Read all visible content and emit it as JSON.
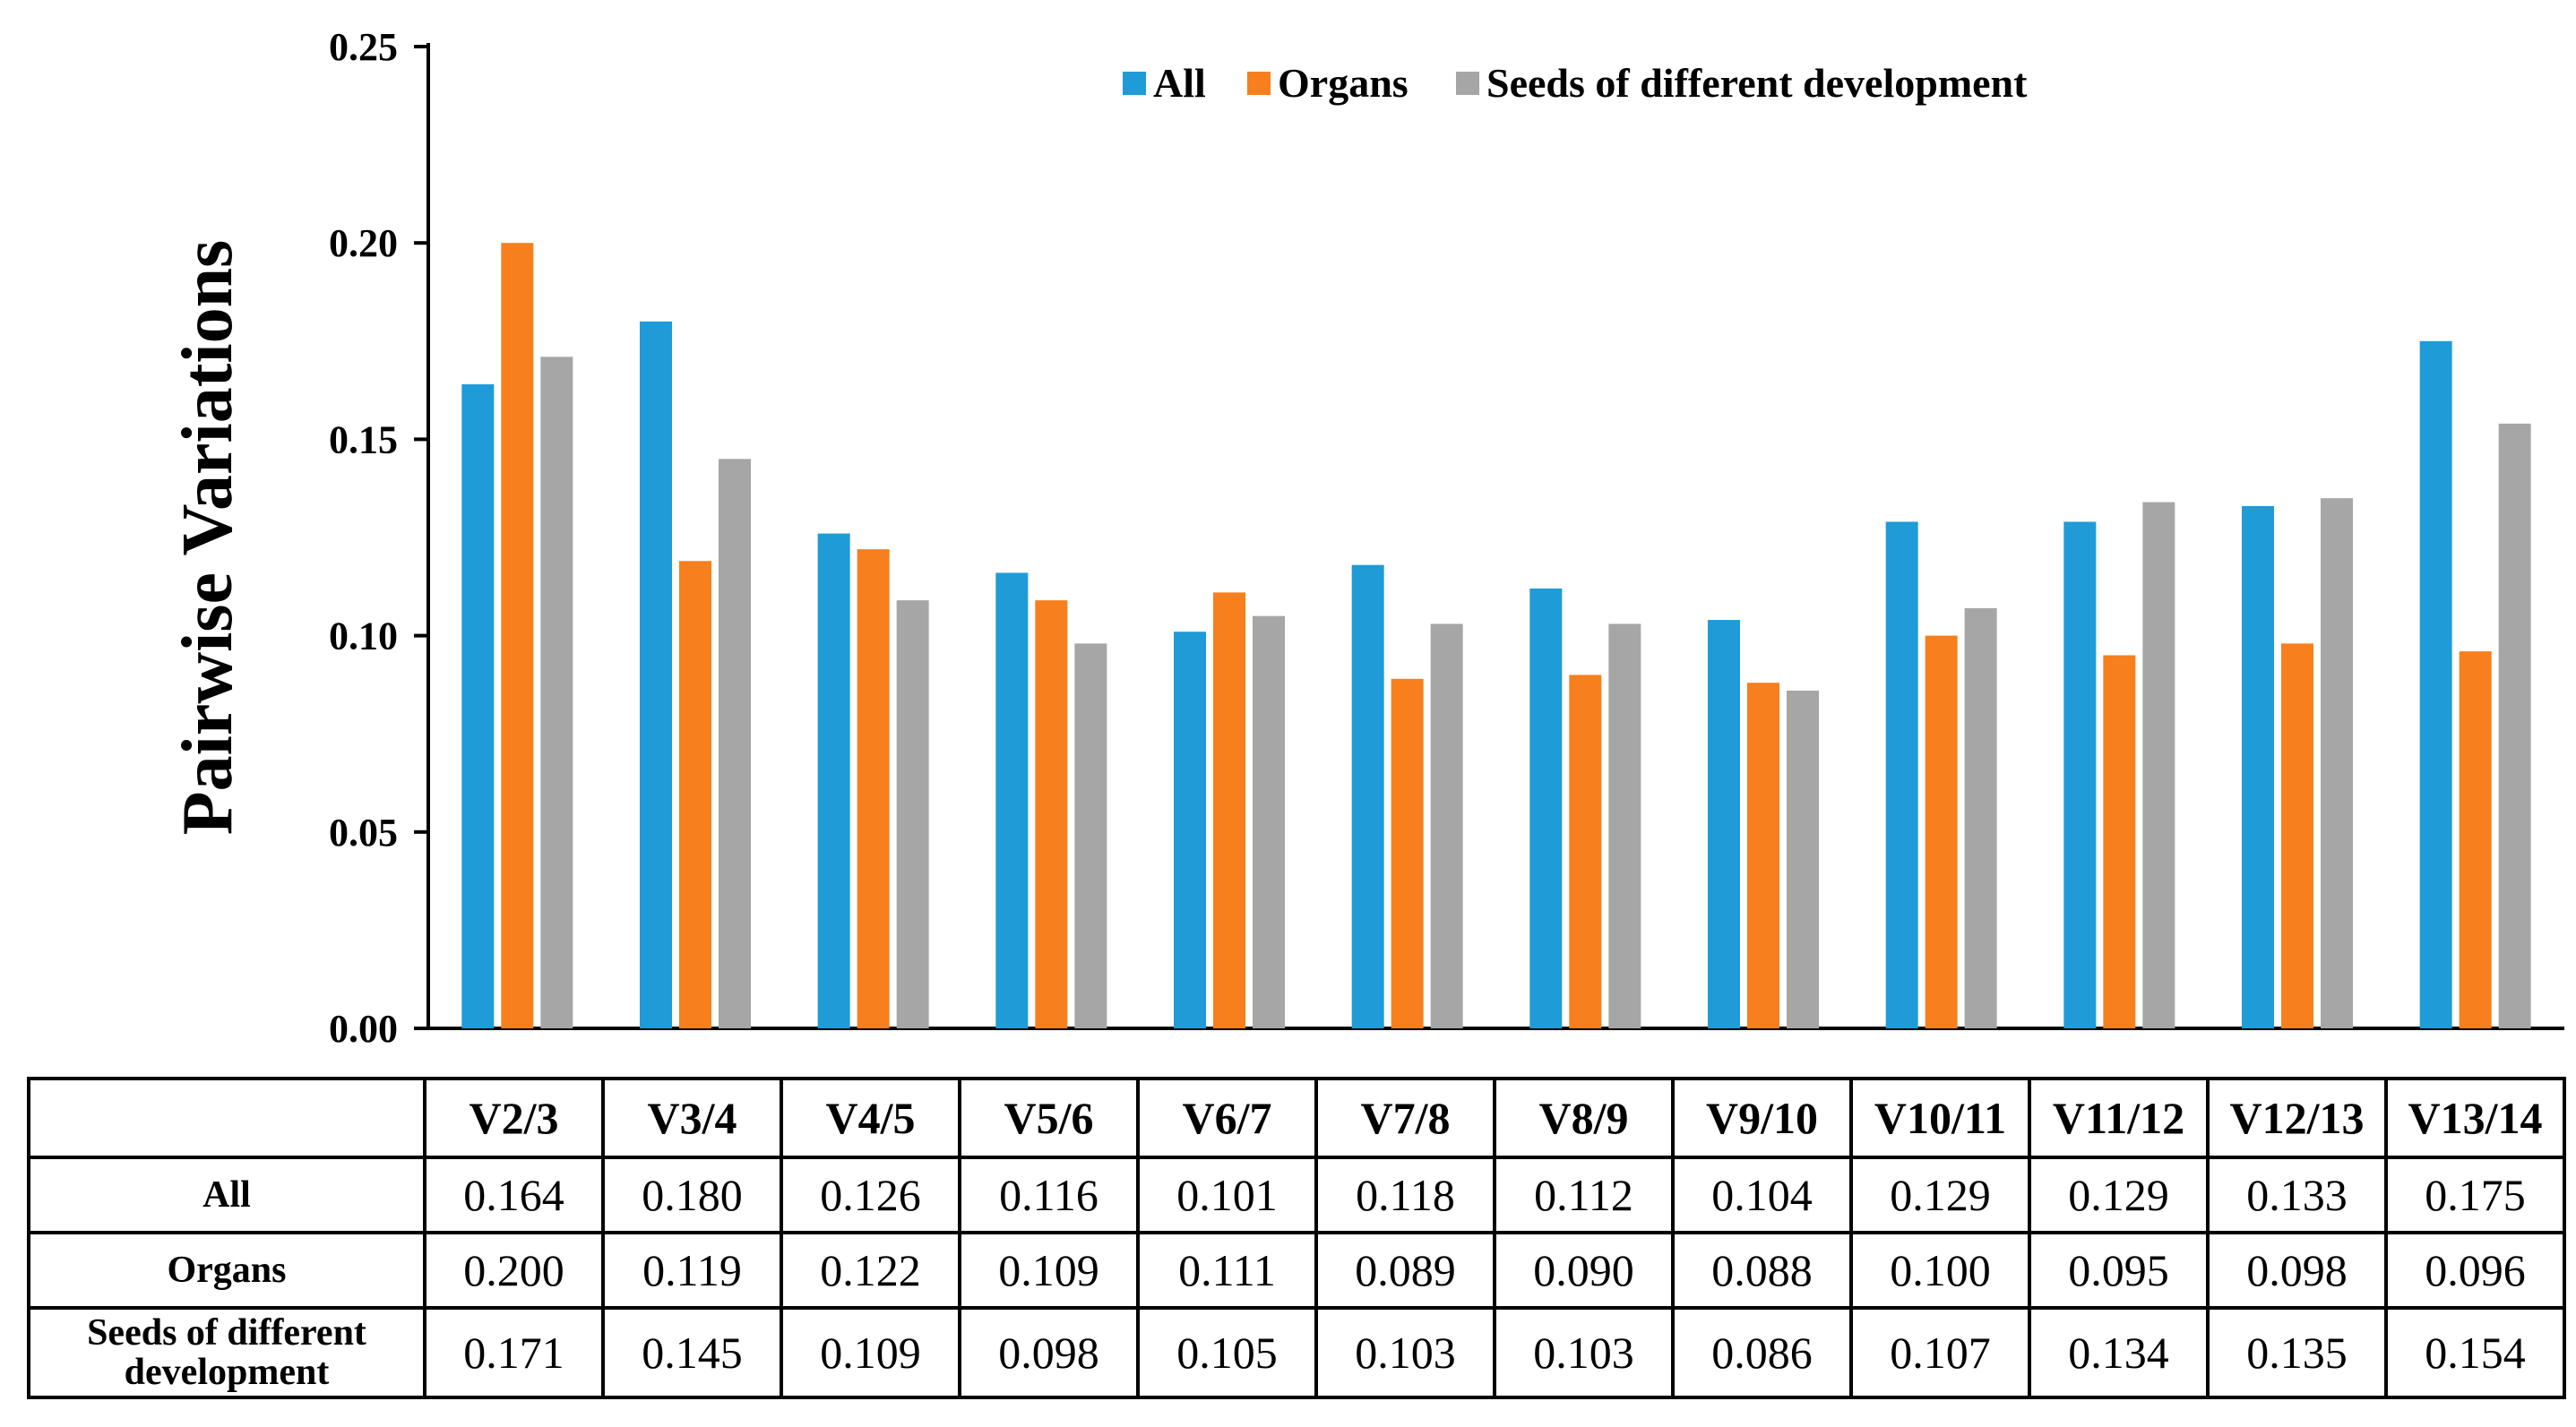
{
  "chart_data": {
    "type": "bar",
    "title": "",
    "xlabel": "",
    "ylabel": "Pairwise Variations",
    "ylim": [
      0,
      0.25
    ],
    "yticks": [
      "0.00",
      "0.05",
      "0.10",
      "0.15",
      "0.20",
      "0.25"
    ],
    "categories": [
      "V2/3",
      "V3/4",
      "V4/5",
      "V5/6",
      "V6/7",
      "V7/8",
      "V8/9",
      "V9/10",
      "V10/11",
      "V11/12",
      "V12/13",
      "V13/14"
    ],
    "series": [
      {
        "name": "All",
        "color": "#1f9bd7",
        "values": [
          0.164,
          0.18,
          0.126,
          0.116,
          0.101,
          0.118,
          0.112,
          0.104,
          0.129,
          0.129,
          0.133,
          0.175
        ]
      },
      {
        "name": "Organs",
        "color": "#f77f1d",
        "values": [
          0.2,
          0.119,
          0.122,
          0.109,
          0.111,
          0.089,
          0.09,
          0.088,
          0.1,
          0.095,
          0.098,
          0.096
        ]
      },
      {
        "name": "Seeds of different development",
        "color": "#a6a6a6",
        "values": [
          0.171,
          0.145,
          0.109,
          0.098,
          0.105,
          0.103,
          0.103,
          0.086,
          0.107,
          0.134,
          0.135,
          0.154
        ]
      }
    ],
    "legend_position": "top-right"
  },
  "table": {
    "row_labels": [
      "All",
      "Organs",
      "Seeds of different development"
    ],
    "rows": [
      [
        "0.164",
        "0.180",
        "0.126",
        "0.116",
        "0.101",
        "0.118",
        "0.112",
        "0.104",
        "0.129",
        "0.129",
        "0.133",
        "0.175"
      ],
      [
        "0.200",
        "0.119",
        "0.122",
        "0.109",
        "0.111",
        "0.089",
        "0.090",
        "0.088",
        "0.100",
        "0.095",
        "0.098",
        "0.096"
      ],
      [
        "0.171",
        "0.145",
        "0.109",
        "0.098",
        "0.105",
        "0.103",
        "0.103",
        "0.086",
        "0.107",
        "0.134",
        "0.135",
        "0.154"
      ]
    ]
  }
}
